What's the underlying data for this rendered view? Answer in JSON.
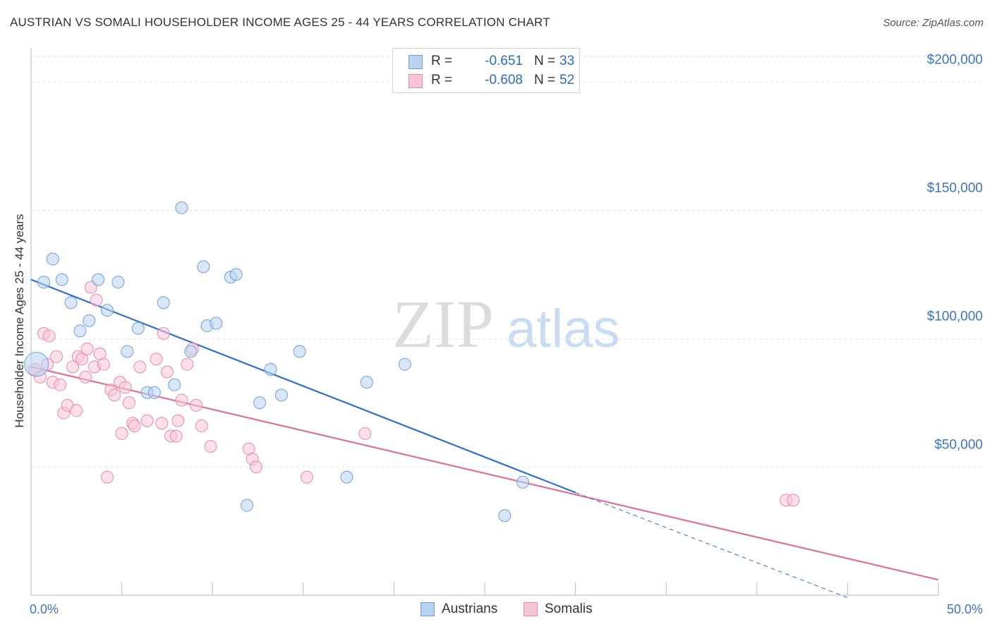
{
  "header": {
    "title": "AUSTRIAN VS SOMALI HOUSEHOLDER INCOME AGES 25 - 44 YEARS CORRELATION CHART",
    "source": "Source: ZipAtlas.com"
  },
  "watermark": {
    "part1": "ZIP",
    "part2": "atlas"
  },
  "legend": {
    "rows": [
      {
        "r_label": "R =",
        "r_value": "-0.651",
        "n_label": "N =",
        "n_value": "33"
      },
      {
        "r_label": "R =",
        "r_value": "-0.608",
        "n_label": "N =",
        "n_value": "52"
      }
    ]
  },
  "colors": {
    "austrians_fill": "#b8d3f2",
    "austrians_stroke": "#6f9fd8",
    "austrians_line": "#2d6fd0",
    "somalis_fill": "#f9c5d5",
    "somalis_stroke": "#e88aa8",
    "somalis_line": "#e0709a",
    "axis_text": "#3d74c9",
    "grid": "#e3e3e3"
  },
  "chart_data": {
    "type": "scatter",
    "title": "AUSTRIAN VS SOMALI HOUSEHOLDER INCOME AGES 25 - 44 YEARS CORRELATION CHART",
    "xlabel": "",
    "ylabel": "Householder Income Ages 25 - 44 years",
    "xlim": [
      0,
      50
    ],
    "ylim": [
      0,
      210000
    ],
    "x_ticks": [
      0,
      5,
      10,
      15,
      20,
      25,
      30,
      35,
      40,
      45,
      50
    ],
    "x_tick_labels": [
      {
        "value": 0,
        "label": "0.0%"
      },
      {
        "value": 50,
        "label": "50.0%"
      }
    ],
    "y_ticks": [
      {
        "value": 50000,
        "label": "$50,000"
      },
      {
        "value": 100000,
        "label": "$100,000"
      },
      {
        "value": 150000,
        "label": "$150,000"
      },
      {
        "value": 200000,
        "label": "$200,000"
      }
    ],
    "grid": true,
    "legend_position": "top-center",
    "series": [
      {
        "name": "Austrians",
        "points": [
          [
            0.3,
            90000
          ],
          [
            0.7,
            122000
          ],
          [
            1.2,
            131000
          ],
          [
            1.7,
            123000
          ],
          [
            2.2,
            114000
          ],
          [
            2.7,
            103000
          ],
          [
            3.2,
            107000
          ],
          [
            3.7,
            123000
          ],
          [
            4.2,
            111000
          ],
          [
            4.8,
            122000
          ],
          [
            5.3,
            95000
          ],
          [
            5.9,
            104000
          ],
          [
            6.4,
            79000
          ],
          [
            6.8,
            79000
          ],
          [
            7.3,
            114000
          ],
          [
            7.9,
            82000
          ],
          [
            8.3,
            151000
          ],
          [
            8.8,
            95000
          ],
          [
            9.5,
            128000
          ],
          [
            9.7,
            105000
          ],
          [
            10.2,
            106000
          ],
          [
            11.0,
            124000
          ],
          [
            11.3,
            125000
          ],
          [
            11.9,
            35000
          ],
          [
            12.6,
            75000
          ],
          [
            13.2,
            88000
          ],
          [
            13.8,
            78000
          ],
          [
            14.8,
            95000
          ],
          [
            17.4,
            46000
          ],
          [
            18.5,
            83000
          ],
          [
            20.6,
            90000
          ],
          [
            26.1,
            31000
          ],
          [
            27.1,
            44000
          ]
        ],
        "trend": {
          "x": [
            0.0,
            30.0
          ],
          "y": [
            123000,
            40000
          ]
        },
        "trend_extension": {
          "x": [
            30.0,
            45.0
          ],
          "y": [
            40000,
            -1000
          ]
        }
      },
      {
        "name": "Somalis",
        "points": [
          [
            0.2,
            88000
          ],
          [
            0.5,
            85000
          ],
          [
            0.7,
            102000
          ],
          [
            0.9,
            90000
          ],
          [
            1.0,
            101000
          ],
          [
            1.2,
            83000
          ],
          [
            1.4,
            93000
          ],
          [
            1.6,
            82000
          ],
          [
            1.8,
            71000
          ],
          [
            2.0,
            74000
          ],
          [
            2.3,
            89000
          ],
          [
            2.5,
            72000
          ],
          [
            2.6,
            93000
          ],
          [
            2.8,
            92000
          ],
          [
            3.0,
            85000
          ],
          [
            3.1,
            96000
          ],
          [
            3.3,
            120000
          ],
          [
            3.5,
            89000
          ],
          [
            3.6,
            115000
          ],
          [
            3.8,
            94000
          ],
          [
            4.0,
            90000
          ],
          [
            4.2,
            46000
          ],
          [
            4.4,
            80000
          ],
          [
            4.6,
            78000
          ],
          [
            4.9,
            83000
          ],
          [
            5.0,
            63000
          ],
          [
            5.2,
            81000
          ],
          [
            5.4,
            75000
          ],
          [
            5.6,
            67000
          ],
          [
            5.7,
            66000
          ],
          [
            6.0,
            89000
          ],
          [
            6.4,
            68000
          ],
          [
            6.9,
            92000
          ],
          [
            7.2,
            67000
          ],
          [
            7.3,
            102000
          ],
          [
            7.5,
            87000
          ],
          [
            7.7,
            62000
          ],
          [
            8.0,
            62000
          ],
          [
            8.1,
            68000
          ],
          [
            8.3,
            76000
          ],
          [
            8.6,
            90000
          ],
          [
            8.9,
            96000
          ],
          [
            9.1,
            74000
          ],
          [
            9.4,
            66000
          ],
          [
            9.9,
            58000
          ],
          [
            12.0,
            57000
          ],
          [
            12.2,
            53000
          ],
          [
            12.4,
            50000
          ],
          [
            15.2,
            46000
          ],
          [
            18.4,
            63000
          ],
          [
            41.6,
            37000
          ],
          [
            42.0,
            37000
          ]
        ],
        "trend": {
          "x": [
            0.0,
            50.0
          ],
          "y": [
            89000,
            6000
          ]
        }
      }
    ]
  }
}
